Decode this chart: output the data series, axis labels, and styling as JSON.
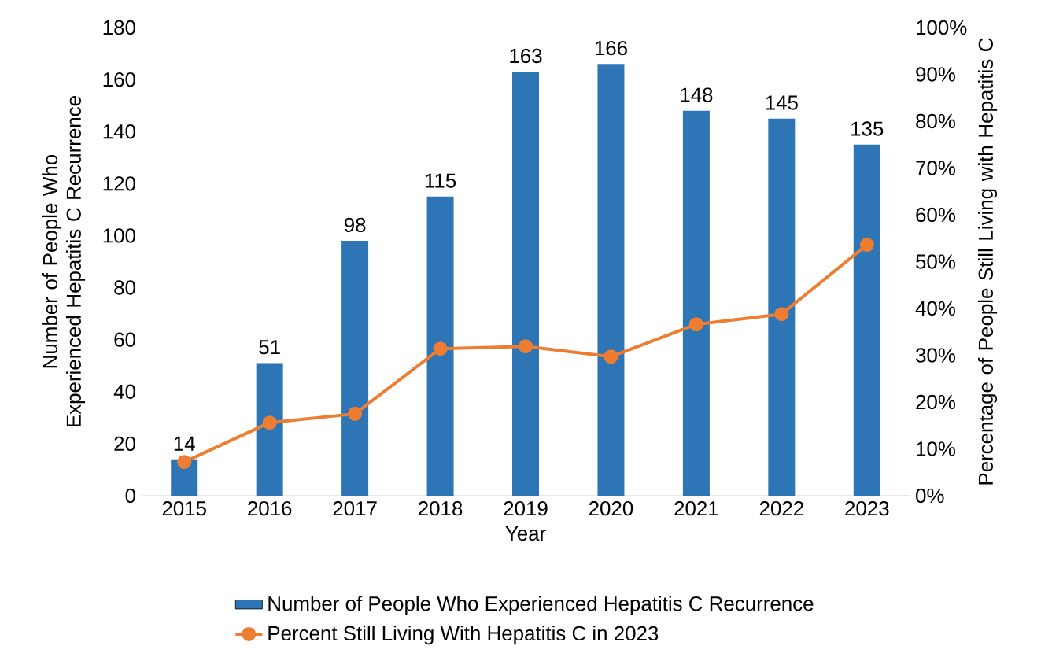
{
  "chart_data": {
    "type": "bar",
    "xlabel": "Year",
    "ylabel": "Number of People Who Experienced Hepatitis C Recurrence",
    "y2label": "Percentage of People Still Living with Hepatitis C",
    "categories": [
      "2015",
      "2016",
      "2017",
      "2018",
      "2019",
      "2020",
      "2021",
      "2022",
      "2023"
    ],
    "series": [
      {
        "name": "Number of People Who Experienced Hepatitis C Recurrence",
        "color": "#2e75b6",
        "values": [
          14,
          51,
          98,
          115,
          163,
          166,
          148,
          145,
          135
        ],
        "value_labels": [
          "14",
          "51",
          "98",
          "115",
          "163",
          "166",
          "148",
          "145",
          "135"
        ]
      },
      {
        "name": "Percent Still Living With Hepatitis C in 2023",
        "type": "line",
        "axis": "y2",
        "color": "#ed7d31",
        "marker": "circle",
        "values": [
          7.2,
          15.6,
          17.5,
          31.4,
          31.9,
          29.7,
          36.6,
          38.8,
          53.6
        ]
      }
    ],
    "legend": "bottom",
    "grid": false,
    "ylim": [
      0,
      180
    ],
    "yticks": [
      0,
      20,
      40,
      60,
      80,
      100,
      120,
      140,
      160,
      180
    ],
    "y2lim": [
      0,
      100
    ],
    "y2ticks": [
      {
        "value": 0,
        "label": "0%"
      },
      {
        "value": 10,
        "label": "10%"
      },
      {
        "value": 20,
        "label": "20%"
      },
      {
        "value": 30,
        "label": "30%"
      },
      {
        "value": 40,
        "label": "40%"
      },
      {
        "value": 50,
        "label": "50%"
      },
      {
        "value": 60,
        "label": "60%"
      },
      {
        "value": 70,
        "label": "70%"
      },
      {
        "value": 80,
        "label": "80%"
      },
      {
        "value": 90,
        "label": "90%"
      },
      {
        "value": 100,
        "label": "100%"
      }
    ]
  }
}
